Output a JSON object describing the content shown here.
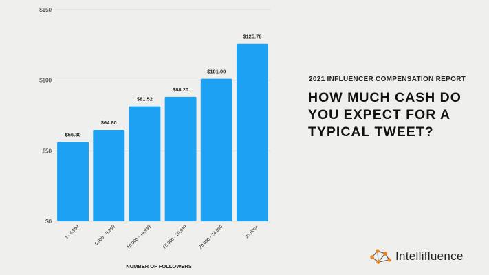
{
  "report_label": "2021 INFLUENCER COMPENSATION REPORT",
  "headline": "HOW MUCH CASH DO YOU EXPECT FOR A TYPICAL TWEET?",
  "brand": {
    "name": "Intellifluence",
    "logo_icon": "network-nodes-icon"
  },
  "colors": {
    "bar": "#1da1f2",
    "background": "#eff0ee",
    "grid": "#d9d9d9",
    "logo_node": "#f0851d",
    "logo_line": "#555555"
  },
  "chart_data": {
    "type": "bar",
    "categories": [
      "1 - 4,999",
      "5,000 - 9,999",
      "10,000 - 14,999",
      "15,000 - 19,999",
      "20,000 - 24,999",
      "25,000+"
    ],
    "values": [
      56.3,
      64.8,
      81.52,
      88.2,
      101.0,
      125.78
    ],
    "value_labels": [
      "$56.30",
      "$64.80",
      "$81.52",
      "$88.20",
      "$101.00",
      "$125.78"
    ],
    "xlabel": "NUMBER OF FOLLOWERS",
    "ylabel": "",
    "ylim": [
      0,
      150
    ],
    "yticks": [
      0,
      50,
      100,
      150
    ],
    "ytick_labels": [
      "$0",
      "$50",
      "$100",
      "$150"
    ],
    "grid": true
  }
}
